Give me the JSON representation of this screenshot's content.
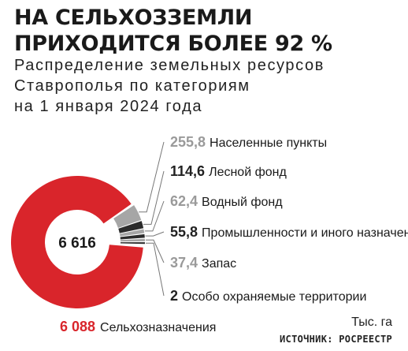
{
  "title_lines": [
    "НА СЕЛЬХОЗЗЕМЛИ",
    "ПРИХОДИТСЯ БОЛЕЕ 92 %"
  ],
  "subtitle_lines": [
    "Распределение земельных ресурсов",
    "Ставрополья по категориям",
    "на 1 января 2024 года"
  ],
  "unit": "Тыс. га",
  "source": "ИСТОЧНИК: РОСРЕЕСТР",
  "chart_data": {
    "type": "pie",
    "center_label": "6 616",
    "slices": [
      {
        "label": "Сельхозназначения",
        "value_text": "6 088",
        "value": 6088,
        "color": "#d9252b",
        "label_color": "#d9252b"
      },
      {
        "label": "Населенные пункты",
        "value_text": "255,8",
        "value": 255.8,
        "color": "#a6a6a6",
        "label_color": "#9a9a9a"
      },
      {
        "label": "Лесной фонд",
        "value_text": "114,6",
        "value": 114.6,
        "color": "#2b2b2b",
        "label_color": "#222222"
      },
      {
        "label": "Водный фонд",
        "value_text": "62,4",
        "value": 62.4,
        "color": "#a6a6a6",
        "label_color": "#9a9a9a"
      },
      {
        "label": "Промышленности и иного назначения",
        "value_text": "55,8",
        "value": 55.8,
        "color": "#2b2b2b",
        "label_color": "#222222"
      },
      {
        "label": "Запас",
        "value_text": "37,4",
        "value": 37.4,
        "color": "#a6a6a6",
        "label_color": "#9a9a9a"
      },
      {
        "label": "Особо охраняемые территории",
        "value_text": "2",
        "value": 2,
        "color": "#2b2b2b",
        "label_color": "#222222"
      }
    ]
  }
}
